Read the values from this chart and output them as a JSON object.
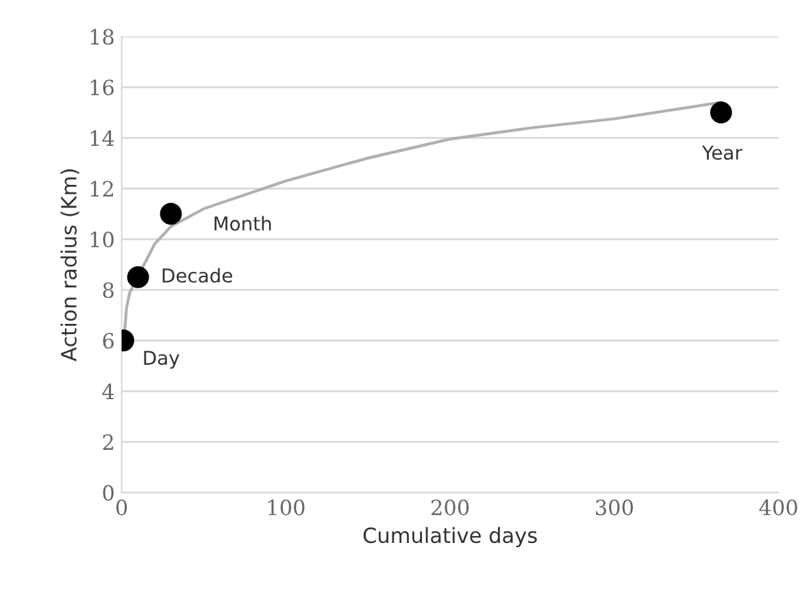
{
  "chart_data": {
    "type": "scatter",
    "xlabel": "Cumulative days",
    "ylabel": "Action radius (Km)",
    "xlim": [
      0,
      400
    ],
    "xticks": [
      0,
      100,
      200,
      300,
      400
    ],
    "ylim": [
      0,
      18
    ],
    "yticks": [
      0,
      2,
      4,
      6,
      8,
      10,
      12,
      14,
      16,
      18
    ],
    "grid": "y",
    "series": [
      {
        "type": "scatter",
        "marker": "circle",
        "color": "#000000",
        "x": [
          1,
          10,
          30,
          365
        ],
        "values": [
          6,
          8.5,
          11,
          15
        ]
      },
      {
        "type": "line",
        "color": "#b0b0b0",
        "line_style": "solid",
        "x": [
          1,
          3,
          5,
          20,
          30,
          50,
          100,
          150,
          200,
          250,
          300,
          365
        ],
        "values": [
          5.7,
          7.3,
          7.9,
          9.8,
          10.5,
          11.2,
          12.3,
          13.2,
          13.95,
          14.4,
          14.75,
          15.4
        ]
      }
    ],
    "annotations": [
      {
        "text": "Day",
        "x": 1,
        "y": 6
      },
      {
        "text": "Decade",
        "x": 10,
        "y": 8.5
      },
      {
        "text": "Month",
        "x": 30,
        "y": 11
      },
      {
        "text": "Year",
        "x": 365,
        "y": 15
      }
    ]
  }
}
